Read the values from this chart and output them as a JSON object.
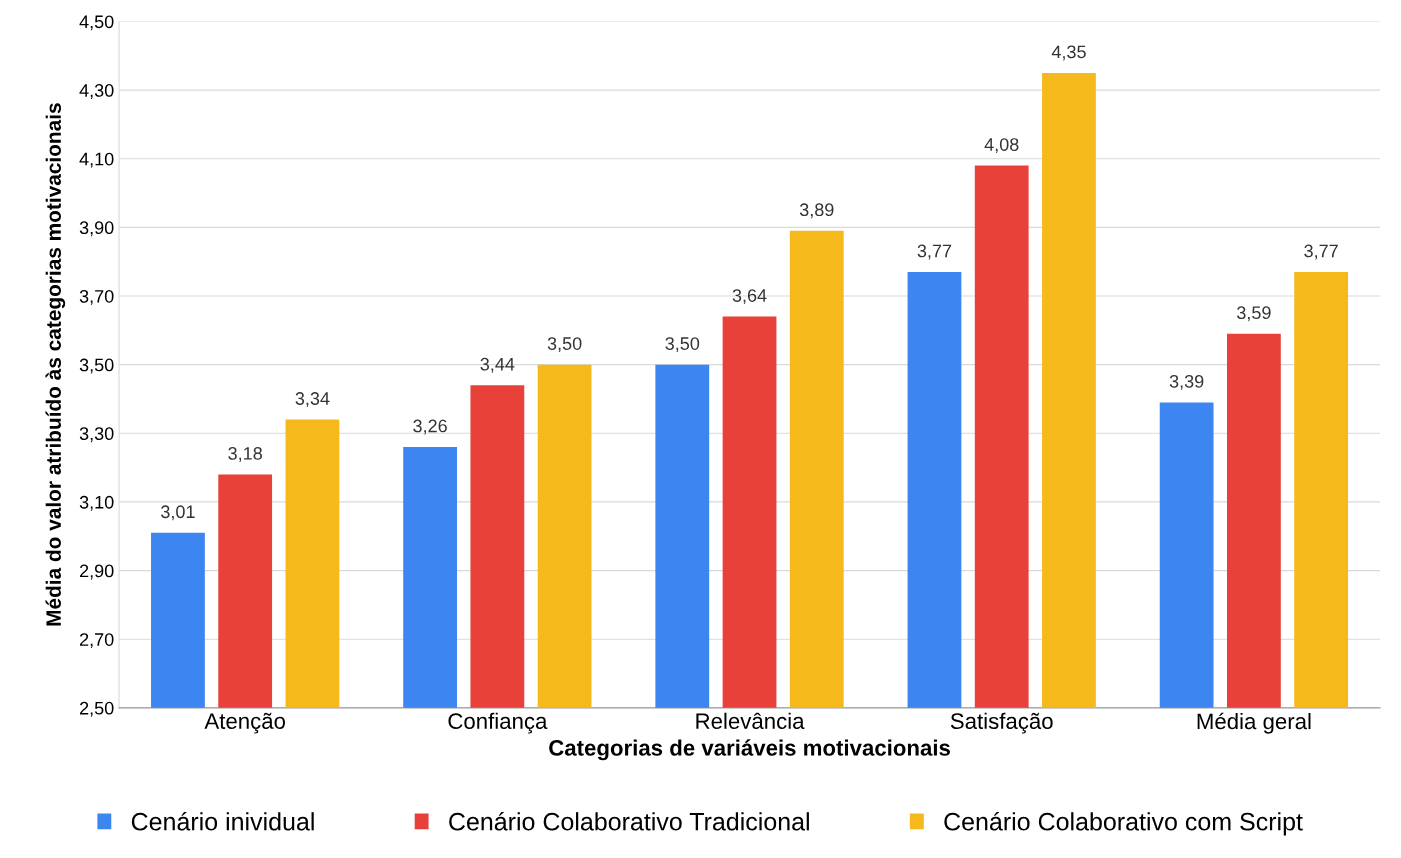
{
  "chart_data": {
    "type": "bar",
    "xlabel": "Categorias de variáveis motivacionais",
    "ylabel": "Média do valor atribuído às categorias motivacionais",
    "categories": [
      "Atenção",
      "Confiança",
      "Relevância",
      "Satisfação",
      "Média geral"
    ],
    "series": [
      {
        "name": "Cenário inividual",
        "color": "#3d85f0",
        "values": [
          3.01,
          3.26,
          3.5,
          3.77,
          3.39
        ],
        "value_labels": [
          "3,01",
          "3,26",
          "3,50",
          "3,77",
          "3,39"
        ]
      },
      {
        "name": "Cenário Colaborativo Tradicional",
        "color": "#e8413a",
        "values": [
          3.18,
          3.44,
          3.64,
          4.08,
          3.59
        ],
        "value_labels": [
          "3,18",
          "3,44",
          "3,64",
          "4,08",
          "3,59"
        ]
      },
      {
        "name": "Cenário Colaborativo com Script",
        "color": "#f6b91c",
        "values": [
          3.34,
          3.5,
          3.89,
          4.35,
          3.77
        ],
        "value_labels": [
          "3,34",
          "3,50",
          "3,89",
          "4,35",
          "3,77"
        ]
      }
    ],
    "ylim": [
      2.5,
      4.5
    ],
    "yticks": [
      {
        "value": 2.5,
        "label": "2,50"
      },
      {
        "value": 2.7,
        "label": "2,70"
      },
      {
        "value": 2.9,
        "label": "2,90"
      },
      {
        "value": 3.1,
        "label": "3,10"
      },
      {
        "value": 3.3,
        "label": "3,30"
      },
      {
        "value": 3.5,
        "label": "3,50"
      },
      {
        "value": 3.7,
        "label": "3,70"
      },
      {
        "value": 3.9,
        "label": "3,90"
      },
      {
        "value": 4.1,
        "label": "4,10"
      },
      {
        "value": 4.3,
        "label": "4,30"
      },
      {
        "value": 4.5,
        "label": "4,50"
      }
    ],
    "grid": "y",
    "legend": "bottom"
  }
}
